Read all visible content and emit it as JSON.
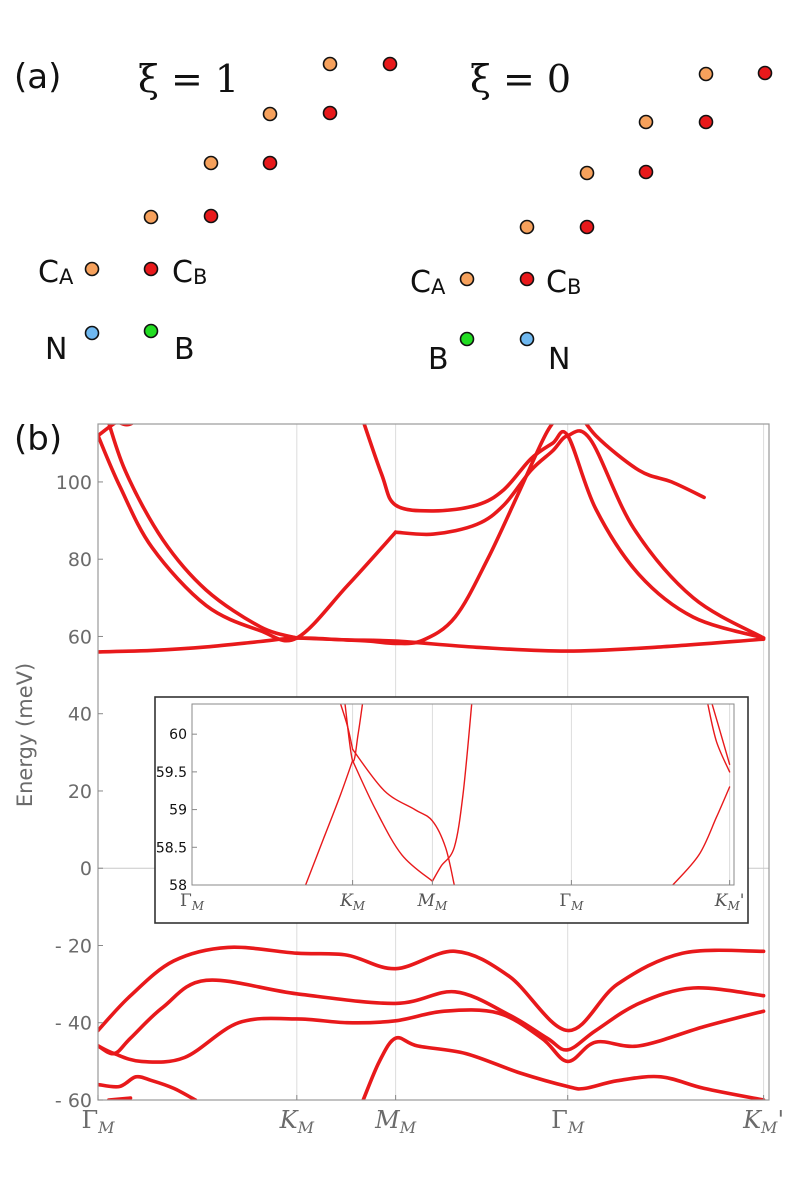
{
  "panel_a": {
    "label": "(a)",
    "left": {
      "title": "ξ = 1",
      "labels": {
        "ca": "C",
        "ca_sub": "A",
        "cb": "C",
        "cb_sub": "B",
        "n": "N",
        "b": "B"
      }
    },
    "right": {
      "title": "ξ = 0",
      "labels": {
        "ca": "C",
        "ca_sub": "A",
        "cb": "C",
        "cb_sub": "B",
        "b": "B",
        "n": "N"
      }
    },
    "colors": {
      "CA": "#f6a15c",
      "CB": "#e8191b",
      "N": "#6fb8f0",
      "B": "#22dd22"
    }
  },
  "chart_data": [
    {
      "type": "line",
      "panel": "(b)",
      "ylabel": "Energy (meV)",
      "ylim": [
        -60,
        115
      ],
      "yticks": [
        -60,
        -40,
        -20,
        0,
        20,
        40,
        60,
        80,
        100
      ],
      "ytick_labels": [
        "- 60",
        "- 40",
        "- 20",
        "0",
        "20",
        "40",
        "60",
        "80",
        "100"
      ],
      "xlim": [
        0,
        6.2
      ],
      "xticks": [
        {
          "pos": 0,
          "main": "Γ",
          "sub": "M",
          "prime": ""
        },
        {
          "pos": 1.837,
          "main": "K",
          "sub": "M",
          "prime": ""
        },
        {
          "pos": 2.75,
          "main": "M",
          "sub": "M",
          "prime": ""
        },
        {
          "pos": 4.34,
          "main": "Γ",
          "sub": "M",
          "prime": ""
        },
        {
          "pos": 6.15,
          "main": "K",
          "sub": "M",
          "prime": "'"
        }
      ],
      "grid": true,
      "color": "#e8191b",
      "series": [
        {
          "x": [
            0,
            0.5,
            1.0,
            1.5,
            1.837,
            2.3,
            2.75,
            3.5,
            4.34,
            5.2,
            6.15
          ],
          "y": [
            56,
            56.4,
            57.3,
            58.7,
            59.6,
            59.1,
            58.8,
            57.2,
            56.2,
            57.3,
            59.3
          ]
        },
        {
          "x": [
            0,
            0.2,
            0.5,
            1.0,
            1.5,
            1.837,
            2.3,
            2.75
          ],
          "y": [
            112,
            99,
            83,
            68,
            61.5,
            59.6,
            73,
            87
          ]
        },
        {
          "x": [
            0.05,
            0.25,
            0.6,
            1.0,
            1.5,
            1.837
          ],
          "y": [
            120,
            103,
            85,
            72,
            62.5,
            59.6
          ]
        },
        {
          "x": [
            2.4,
            2.62,
            2.75,
            3.1,
            3.5,
            3.75,
            4.0,
            4.2,
            4.34,
            4.6,
            5.0,
            5.5,
            6.15
          ],
          "y": [
            120,
            102,
            94,
            92.5,
            94,
            98,
            106,
            110,
            112,
            93,
            76,
            65,
            59.6
          ]
        },
        {
          "x": [
            2.75,
            3.1,
            3.5,
            3.75,
            4.0,
            4.2,
            4.34,
            4.55,
            4.95,
            5.5,
            6.15
          ],
          "y": [
            87,
            86.5,
            89,
            94,
            103,
            108,
            112,
            111,
            88,
            70,
            59.6
          ]
        },
        {
          "x": [
            1.837,
            2.2,
            2.5,
            2.75,
            3.0,
            3.3,
            3.6,
            3.9,
            4.15,
            4.34
          ],
          "y": [
            59.6,
            59.2,
            58.8,
            58.2,
            59,
            65,
            80,
            98,
            113,
            120
          ]
        },
        {
          "x": [
            4.4,
            4.6,
            5.0,
            5.3,
            5.6
          ],
          "y": [
            120,
            112,
            103,
            100,
            96
          ]
        },
        {
          "x": [
            0,
            0.2,
            0.4,
            0.7
          ],
          "y": [
            112,
            116,
            118,
            120
          ]
        },
        {
          "x": [
            0.15,
            0.3,
            0.5
          ],
          "y": [
            116,
            115,
            120
          ]
        },
        {
          "x": [
            0,
            0.3,
            0.7,
            1.2,
            1.837,
            2.3,
            2.75,
            3.3,
            3.8,
            4.34,
            4.8,
            5.4,
            6.15
          ],
          "y": [
            -42,
            -33,
            -24,
            -20.5,
            -22,
            -22.5,
            -26,
            -21.5,
            -28,
            -42,
            -30,
            -22,
            -21.5
          ]
        },
        {
          "x": [
            0,
            0.15,
            0.3,
            0.6,
            1.0,
            1.837,
            2.75,
            3.3,
            3.8,
            4.15,
            4.34,
            4.6,
            5.0,
            5.5,
            6.15
          ],
          "y": [
            -46,
            -48,
            -44,
            -36,
            -29,
            -32.5,
            -35,
            -32,
            -38,
            -44,
            -47,
            -42,
            -35,
            -31,
            -33
          ]
        },
        {
          "x": [
            0,
            0.15,
            0.4,
            0.8,
            1.3,
            1.837,
            2.3,
            2.75,
            3.2,
            3.7,
            4.1,
            4.34,
            4.6,
            5.0,
            5.6,
            6.15
          ],
          "y": [
            -46,
            -48,
            -50,
            -49,
            -40,
            -39,
            -40,
            -39.5,
            -37,
            -37.5,
            -44,
            -50,
            -45,
            -46,
            -41,
            -37
          ]
        },
        {
          "x": [
            0,
            0.2,
            0.35,
            0.5,
            0.7,
            0.9
          ],
          "y": [
            -56,
            -56.5,
            -54,
            -55,
            -57,
            -60
          ]
        },
        {
          "x": [
            2.45,
            2.6,
            2.75,
            2.95,
            3.4,
            3.9,
            4.34,
            4.5,
            4.8,
            5.2,
            5.6,
            6.15
          ],
          "y": [
            -60,
            -50,
            -44,
            -46,
            -48,
            -53,
            -56.5,
            -57,
            -55,
            -54,
            -57,
            -60
          ]
        },
        {
          "x": [
            0.1,
            0.3
          ],
          "y": [
            -60,
            -59.5
          ]
        }
      ]
    },
    {
      "type": "line",
      "panel": "(b) inset",
      "ylim": [
        58,
        60.4
      ],
      "yticks": [
        58,
        58.5,
        59,
        59.5,
        60
      ],
      "ytick_labels": [
        "58",
        "58.5",
        "59",
        "59.5",
        "60"
      ],
      "xlim": [
        0,
        6.2
      ],
      "xticks": [
        {
          "pos": 0,
          "main": "Γ",
          "sub": "M",
          "prime": ""
        },
        {
          "pos": 1.837,
          "main": "K",
          "sub": "M",
          "prime": ""
        },
        {
          "pos": 2.75,
          "main": "M",
          "sub": "M",
          "prime": ""
        },
        {
          "pos": 4.34,
          "main": "Γ",
          "sub": "M",
          "prime": ""
        },
        {
          "pos": 6.15,
          "main": "K",
          "sub": "M",
          "prime": "'"
        }
      ],
      "color": "#e8191b",
      "series": [
        {
          "x": [
            1.3,
            1.5,
            1.7,
            1.837
          ],
          "y": [
            58,
            58.6,
            59.2,
            59.65
          ]
        },
        {
          "x": [
            1.837,
            2.1,
            2.4,
            2.75
          ],
          "y": [
            59.65,
            59.0,
            58.4,
            58.05
          ]
        },
        {
          "x": [
            1.7,
            1.78,
            1.837
          ],
          "y": [
            60.4,
            60.1,
            59.8
          ]
        },
        {
          "x": [
            1.837,
            2.2,
            2.55,
            2.75,
            2.9,
            3.0
          ],
          "y": [
            59.8,
            59.25,
            59.0,
            58.85,
            58.5,
            58
          ]
        },
        {
          "x": [
            2.75,
            2.85,
            3.0,
            3.1,
            3.2
          ],
          "y": [
            58.05,
            58.25,
            58.5,
            59.2,
            60.4
          ]
        },
        {
          "x": [
            1.75,
            1.837,
            1.9,
            1.95
          ],
          "y": [
            60.4,
            59.65,
            60.0,
            60.4
          ]
        },
        {
          "x": [
            5.5,
            5.8,
            6.0,
            6.15
          ],
          "y": [
            58,
            58.4,
            58.9,
            59.3
          ]
        },
        {
          "x": [
            5.9,
            6.0,
            6.15
          ],
          "y": [
            60.4,
            59.9,
            59.5
          ]
        },
        {
          "x": [
            5.95,
            6.05,
            6.15
          ],
          "y": [
            60.4,
            60.0,
            59.6
          ]
        }
      ]
    }
  ]
}
